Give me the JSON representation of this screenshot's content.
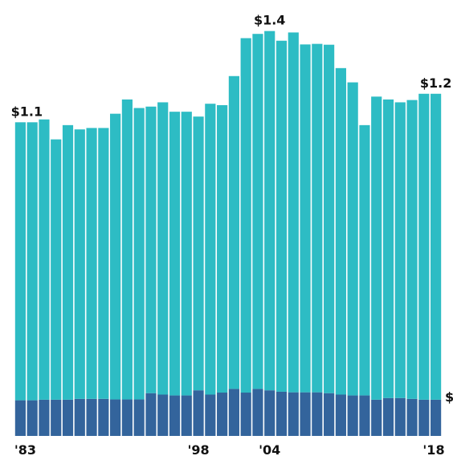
{
  "chart_data": {
    "type": "bar",
    "stacked": true,
    "x": [
      1983,
      1984,
      1985,
      1986,
      1987,
      1988,
      1989,
      1990,
      1991,
      1992,
      1993,
      1994,
      1995,
      1996,
      1997,
      1998,
      1999,
      2000,
      2001,
      2002,
      2003,
      2004,
      2005,
      2006,
      2007,
      2008,
      2009,
      2010,
      2011,
      2012,
      2013,
      2014,
      2015,
      2016,
      2017,
      2018
    ],
    "series": [
      {
        "values": [
          0.125,
          0.125,
          0.127,
          0.127,
          0.127,
          0.13,
          0.13,
          0.13,
          0.128,
          0.128,
          0.128,
          0.15,
          0.145,
          0.142,
          0.142,
          0.16,
          0.145,
          0.152,
          0.165,
          0.152,
          0.165,
          0.16,
          0.155,
          0.153,
          0.153,
          0.153,
          0.15,
          0.145,
          0.142,
          0.142,
          0.127,
          0.133,
          0.133,
          0.13,
          0.127,
          0.127
        ]
      },
      {
        "values": [
          0.975,
          0.975,
          0.983,
          0.913,
          0.963,
          0.945,
          0.95,
          0.95,
          1.002,
          1.052,
          1.022,
          1.005,
          1.025,
          0.995,
          0.995,
          0.96,
          1.02,
          1.008,
          1.097,
          1.243,
          1.245,
          1.26,
          1.231,
          1.262,
          1.22,
          1.222,
          1.222,
          1.145,
          1.098,
          0.948,
          1.063,
          1.047,
          1.037,
          1.048,
          1.073,
          1.073
        ]
      }
    ],
    "annotations": [
      {
        "text": "$1.1",
        "x": 1983
      },
      {
        "text": "$1.4",
        "x": 2004
      },
      {
        "text": "$1.2",
        "x": 2018
      },
      {
        "text": "$",
        "x": 2018
      }
    ],
    "xticks": [
      {
        "text": "'83",
        "x": 1983
      },
      {
        "text": "'98",
        "x": 1998
      },
      {
        "text": "'04",
        "x": 2004
      },
      {
        "text": "'18",
        "x": 2018
      }
    ],
    "ylim": [
      0,
      1.45
    ],
    "grid": false,
    "colors": [
      "#33649c",
      "#2dbcc4"
    ]
  }
}
